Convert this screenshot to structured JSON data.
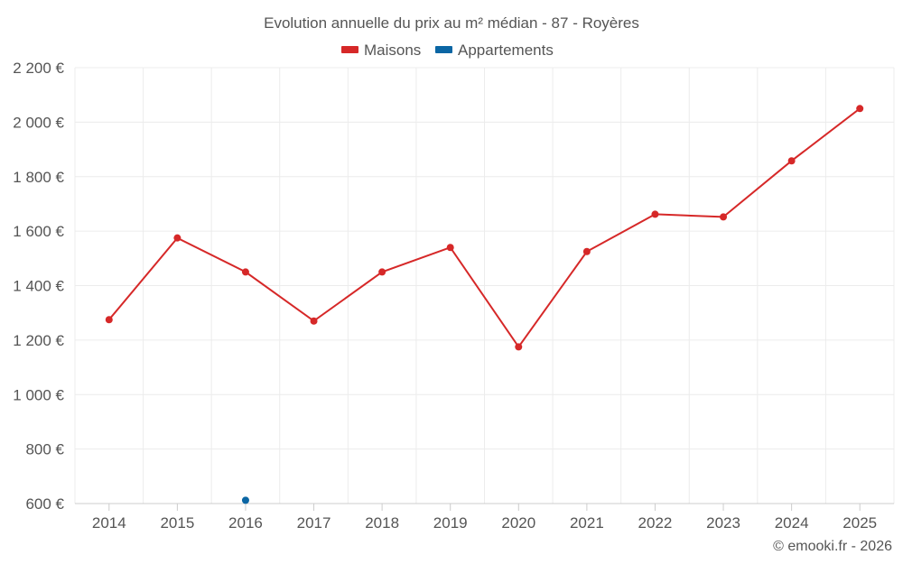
{
  "chart_data": {
    "type": "line",
    "title": "Evolution annuelle du prix au m² médian - 87 - Royères",
    "categories": [
      "2014",
      "2015",
      "2016",
      "2017",
      "2018",
      "2019",
      "2020",
      "2021",
      "2022",
      "2023",
      "2024",
      "2025"
    ],
    "series": [
      {
        "name": "Maisons",
        "color": "#d62828",
        "values": [
          1275,
          1575,
          1450,
          1270,
          1450,
          1540,
          1175,
          1525,
          1662,
          1652,
          1858,
          2050
        ]
      },
      {
        "name": "Appartements",
        "color": "#0b66a4",
        "values": [
          null,
          null,
          612,
          null,
          null,
          null,
          null,
          null,
          null,
          null,
          null,
          null
        ]
      }
    ],
    "yticks": [
      "600 €",
      "800 €",
      "1 000 €",
      "1 200 €",
      "1 400 €",
      "1 600 €",
      "1 800 €",
      "2 000 €",
      "2 200 €"
    ],
    "ylim": [
      600,
      2200
    ],
    "ystep": 200,
    "xlabel": "",
    "ylabel": "",
    "legend": "top-center",
    "grid": true
  },
  "credit": "© emooki.fr - 2026"
}
